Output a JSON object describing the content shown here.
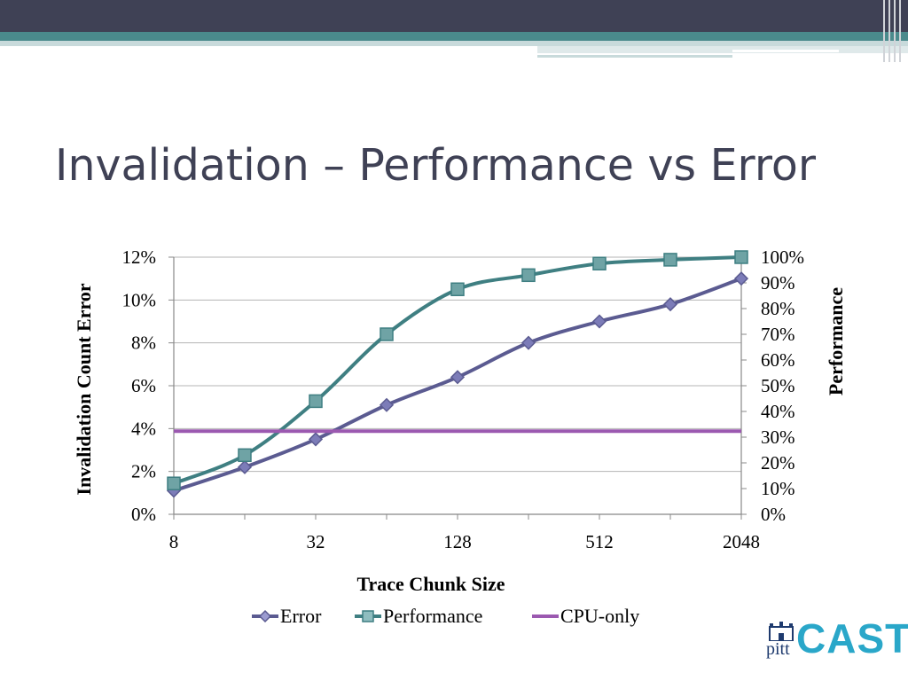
{
  "slide": {
    "title": "Invalidation – Performance vs Error"
  },
  "logo": {
    "small": "pitt",
    "large": "CAST"
  },
  "chart_data": {
    "type": "line",
    "x": [
      8,
      16,
      32,
      64,
      128,
      256,
      512,
      1024,
      2048
    ],
    "x_scale": "log2",
    "x_tick_labels": [
      "8",
      "32",
      "128",
      "512",
      "2048"
    ],
    "xlabel": "Trace Chunk Size",
    "ylabel_left": "Invalidation Count Error",
    "ylabel_right": "Performance",
    "ylim_left": [
      0,
      0.12
    ],
    "ylim_right": [
      0,
      1.0
    ],
    "y_left_tick_labels": [
      "0%",
      "2%",
      "4%",
      "6%",
      "8%",
      "10%",
      "12%"
    ],
    "y_right_tick_labels": [
      "0%",
      "10%",
      "20%",
      "30%",
      "40%",
      "50%",
      "60%",
      "70%",
      "80%",
      "90%",
      "100%"
    ],
    "grid": true,
    "legend_position": "bottom",
    "series": [
      {
        "name": "Error",
        "axis": "left",
        "color": "#5b5b91",
        "marker": "diamond",
        "values": [
          0.011,
          0.022,
          0.035,
          0.051,
          0.064,
          0.08,
          0.09,
          0.098,
          0.11
        ]
      },
      {
        "name": "Performance",
        "axis": "right",
        "color": "#3f7f82",
        "marker": "square",
        "values": [
          0.12,
          0.23,
          0.44,
          0.7,
          0.875,
          0.93,
          0.975,
          0.99,
          1.0
        ]
      },
      {
        "name": "CPU-only",
        "axis": "left",
        "color": "#9b59b0",
        "marker": "none",
        "values": [
          0.0388,
          0.0388,
          0.0388,
          0.0388,
          0.0388,
          0.0388,
          0.0388,
          0.0388,
          0.0388
        ]
      }
    ]
  }
}
